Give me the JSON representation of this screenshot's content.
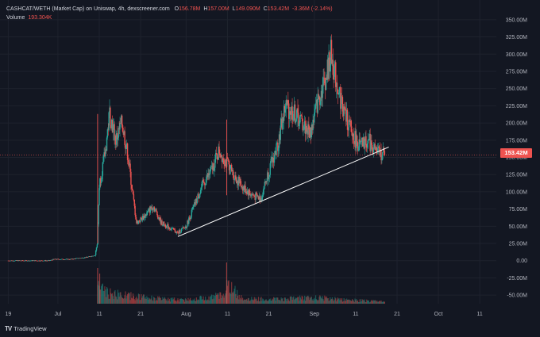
{
  "header": {
    "symbol": "CASHCAT/WETH (Market Cap) on Uniswap, 4h, dexscreener.com",
    "o_label": "O",
    "o_value": "156.78M",
    "h_label": "H",
    "h_value": "157.00M",
    "l_label": "L",
    "l_value": "149.090M",
    "c_label": "C",
    "c_value": "153.42M",
    "change": "-3.36M (-2.14%)",
    "volume_label": "Volume",
    "volume_value": "193.304K"
  },
  "price_tag": "153.42M",
  "brand": {
    "logo": "TV",
    "name": "TradingView"
  },
  "colors": {
    "bg": "#131722",
    "up": "#26a69a",
    "down": "#ef5350",
    "trendline": "#ffffff",
    "grid": "#1e222d"
  },
  "chart_data": {
    "type": "candlestick",
    "y_unit": "M (market cap, USD)",
    "ylim": [
      -62.5,
      362.5
    ],
    "y_ticks": [
      "350.00M",
      "325.00M",
      "300.00M",
      "275.00M",
      "250.00M",
      "225.00M",
      "200.00M",
      "175.00M",
      "150.00M",
      "125.00M",
      "100.00M",
      "75.00M",
      "50.00M",
      "25.00M",
      "0.00",
      "-25.00M",
      "-50.00M"
    ],
    "y_tick_values": [
      350,
      325,
      300,
      275,
      250,
      225,
      200,
      175,
      150,
      125,
      100,
      75,
      50,
      25,
      0,
      -25,
      -50
    ],
    "x_ticks": [
      "19",
      "Jul",
      "11",
      "21",
      "Aug",
      "11",
      "21",
      "Sep",
      "11",
      "21",
      "Oct",
      "11"
    ],
    "x_tick_days": [
      -12,
      0,
      10,
      20,
      31,
      41,
      51,
      62,
      72,
      82,
      92,
      102
    ],
    "x_range_days": [
      -14,
      106
    ],
    "last_price": 153.42,
    "trendline": {
      "from": {
        "day": 29,
        "value": 35
      },
      "to": {
        "day": 80,
        "value": 165
      }
    },
    "price_path": [
      [
        -12,
        0
      ],
      [
        -2,
        0
      ],
      [
        -1,
        2
      ],
      [
        3,
        2
      ],
      [
        7,
        5
      ],
      [
        9,
        8
      ],
      [
        9.5,
        25
      ],
      [
        10,
        110
      ],
      [
        11.5,
        160
      ],
      [
        12.5,
        215
      ],
      [
        14,
        175
      ],
      [
        15.5,
        200
      ],
      [
        17,
        150
      ],
      [
        18,
        100
      ],
      [
        19,
        55
      ],
      [
        21,
        65
      ],
      [
        23,
        80
      ],
      [
        25,
        55
      ],
      [
        27,
        48
      ],
      [
        29,
        40
      ],
      [
        31,
        50
      ],
      [
        33,
        80
      ],
      [
        35,
        110
      ],
      [
        37,
        130
      ],
      [
        39,
        160
      ],
      [
        41,
        140
      ],
      [
        43,
        120
      ],
      [
        45,
        105
      ],
      [
        47,
        95
      ],
      [
        49,
        90
      ],
      [
        51,
        130
      ],
      [
        53,
        165
      ],
      [
        55,
        225
      ],
      [
        57,
        215
      ],
      [
        59,
        200
      ],
      [
        61,
        185
      ],
      [
        63,
        235
      ],
      [
        65,
        270
      ],
      [
        66,
        300
      ],
      [
        67,
        270
      ],
      [
        69,
        220
      ],
      [
        71,
        185
      ],
      [
        73,
        165
      ],
      [
        75,
        175
      ],
      [
        77,
        158
      ],
      [
        79,
        153.42
      ]
    ],
    "spikes": [
      {
        "day": 9.6,
        "high": 213,
        "low": 25
      },
      {
        "day": 40.8,
        "high": 205,
        "low": 95
      }
    ],
    "volume_profile": [
      [
        10,
        1.0
      ],
      [
        12,
        0.55
      ],
      [
        14,
        0.5
      ],
      [
        16,
        0.45
      ],
      [
        18,
        0.4
      ],
      [
        20,
        0.35
      ],
      [
        25,
        0.25
      ],
      [
        30,
        0.2
      ],
      [
        35,
        0.3
      ],
      [
        40,
        0.45
      ],
      [
        40.8,
        1.0
      ],
      [
        45,
        0.25
      ],
      [
        55,
        0.25
      ],
      [
        60,
        0.3
      ],
      [
        65,
        0.3
      ],
      [
        70,
        0.2
      ],
      [
        79,
        0.1
      ]
    ]
  }
}
